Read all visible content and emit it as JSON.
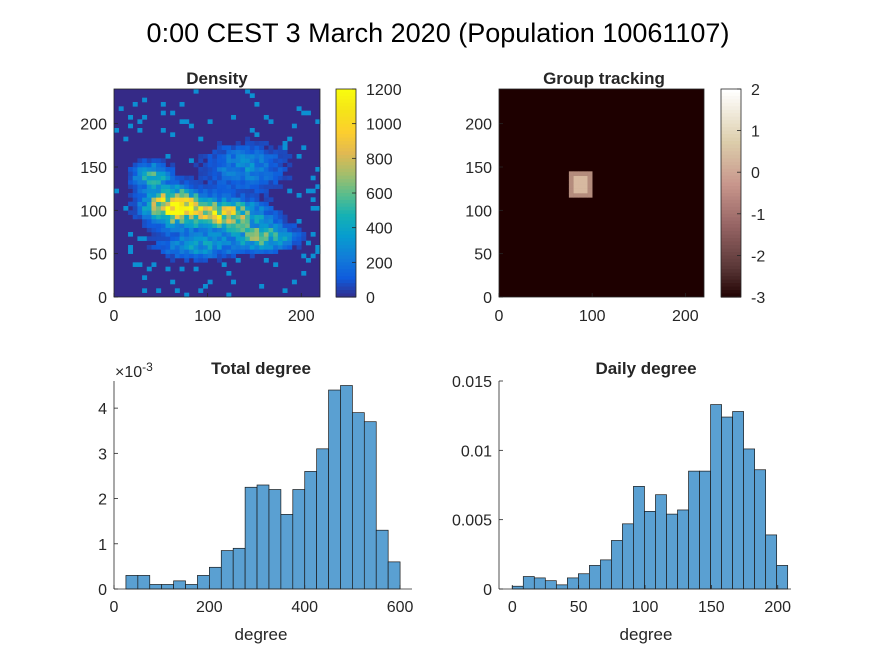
{
  "figure": {
    "suptitle": "0:00 CEST 3 March 2020 (Population 10061107)"
  },
  "chart_data": [
    {
      "type": "heatmap",
      "title": "Density",
      "xlim": [
        0,
        220
      ],
      "ylim": [
        0,
        240
      ],
      "xticks": [
        0,
        100,
        200
      ],
      "yticks": [
        0,
        50,
        100,
        150,
        200
      ],
      "colorbar": {
        "colormap": "parula",
        "range": [
          0,
          1200
        ],
        "ticks": [
          0,
          200,
          400,
          600,
          800,
          1000,
          1200
        ]
      },
      "background_value": 0,
      "density_blob": {
        "description_note": "",
        "cells_x": 44,
        "cells_y": 48,
        "cell_size": 5
      }
    },
    {
      "type": "heatmap",
      "title": "Group tracking",
      "xlim": [
        0,
        220
      ],
      "ylim": [
        0,
        240
      ],
      "xticks": [
        0,
        100,
        200
      ],
      "yticks": [
        0,
        50,
        100,
        150,
        200
      ],
      "colorbar": {
        "colormap": "pink",
        "range": [
          -3,
          2
        ],
        "ticks": [
          2,
          1,
          0,
          -1,
          -2,
          -3
        ]
      },
      "background_value": -3,
      "highlight": {
        "x_range": [
          75,
          100
        ],
        "y_range": [
          115,
          145
        ],
        "value": 0
      }
    },
    {
      "type": "bar",
      "title": "Total degree",
      "xlabel": "degree",
      "ylabel": "",
      "y_exponent_label": "×10",
      "y_exponent": "-3",
      "xlim": [
        0,
        625
      ],
      "ylim": [
        0,
        4.6
      ],
      "xticks": [
        0,
        200,
        400,
        600
      ],
      "yticks": [
        0,
        1,
        2,
        3,
        4
      ],
      "bin_width": 25,
      "bin_edges": [
        25,
        50,
        75,
        100,
        125,
        150,
        175,
        200,
        225,
        250,
        275,
        300,
        325,
        350,
        375,
        400,
        425,
        450,
        475,
        500,
        525,
        550,
        575,
        600
      ],
      "values": [
        0.3,
        0.3,
        0.1,
        0.1,
        0.18,
        0.1,
        0.3,
        0.48,
        0.85,
        0.9,
        2.25,
        2.3,
        2.2,
        1.65,
        2.2,
        2.6,
        3.1,
        4.4,
        4.5,
        3.9,
        3.7,
        1.3,
        0.6
      ]
    },
    {
      "type": "bar",
      "title": "Daily degree",
      "xlabel": "degree",
      "ylabel": "",
      "xlim": [
        -10,
        210
      ],
      "ylim": [
        0,
        0.015
      ],
      "xticks": [
        0,
        50,
        100,
        150,
        200
      ],
      "yticks": [
        0,
        0.005,
        0.01,
        0.015
      ],
      "ytick_labels": [
        "0",
        "0.005",
        "0.01",
        "0.015"
      ],
      "bin_width": 8.3,
      "bin_edges": [
        0,
        8.3,
        16.6,
        24.9,
        33.2,
        41.5,
        49.8,
        58.1,
        66.4,
        74.7,
        83,
        91.3,
        99.6,
        107.9,
        116.2,
        124.5,
        132.8,
        141.1,
        149.4,
        157.7,
        166,
        174.3,
        182.6,
        190.9,
        199.2
      ],
      "values": [
        0.0002,
        0.0009,
        0.0008,
        0.0006,
        0.0003,
        0.0008,
        0.0011,
        0.0017,
        0.0021,
        0.0035,
        0.0047,
        0.0074,
        0.0056,
        0.0068,
        0.0054,
        0.0057,
        0.0085,
        0.0085,
        0.0133,
        0.0124,
        0.0128,
        0.0101,
        0.0086,
        0.0039,
        0.0017
      ]
    }
  ]
}
